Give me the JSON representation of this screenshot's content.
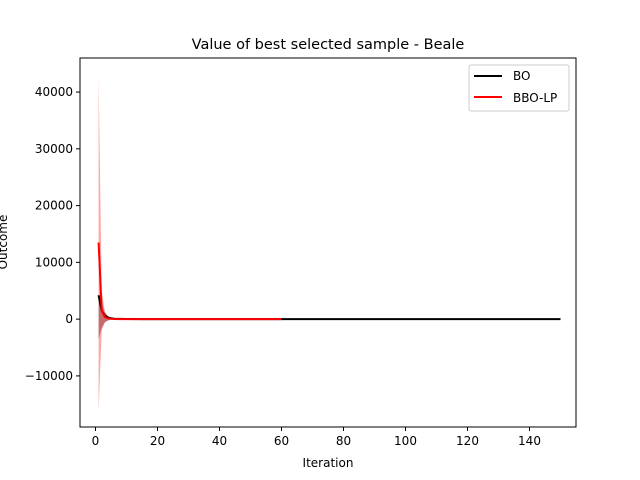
{
  "chart_data": {
    "type": "line",
    "title": "Value of best selected sample - Beale",
    "xlabel": "Iteration",
    "ylabel": "Outcome",
    "xlim": [
      -5,
      155
    ],
    "ylim": [
      -19000,
      46000
    ],
    "xticks": [
      0,
      20,
      40,
      60,
      80,
      100,
      120,
      140
    ],
    "yticks": [
      -10000,
      0,
      10000,
      20000,
      30000,
      40000
    ],
    "legend_position": "top-right",
    "grid": false,
    "series": [
      {
        "name": "BO",
        "color": "#000000",
        "band_color": "#000000",
        "band_opacity": 0.35,
        "x": [
          1,
          2,
          3,
          4,
          5,
          6,
          8,
          10,
          15,
          20,
          30,
          40,
          60,
          80,
          100,
          120,
          150
        ],
        "y": [
          4200,
          1500,
          600,
          300,
          150,
          80,
          40,
          20,
          10,
          5,
          3,
          2,
          1,
          1,
          1,
          1,
          1
        ],
        "band_x": [
          1,
          2,
          3,
          4,
          5,
          6,
          8,
          10,
          15,
          20,
          30,
          40,
          60,
          80,
          100,
          120,
          150
        ],
        "band_lower": [
          -3500,
          -1500,
          -600,
          -250,
          -120,
          -60,
          -20,
          -10,
          -5,
          -3,
          -2,
          -1,
          0,
          0,
          0,
          0,
          0
        ],
        "band_upper": [
          4500,
          2800,
          1200,
          500,
          250,
          120,
          60,
          30,
          15,
          8,
          5,
          3,
          2,
          2,
          2,
          2,
          2
        ]
      },
      {
        "name": "BBO-LP",
        "color": "#ff0000",
        "band_color": "#ff0000",
        "band_opacity": 0.35,
        "x": [
          1,
          2,
          3,
          4,
          5,
          6,
          8,
          10,
          15,
          20,
          30,
          40,
          50,
          60
        ],
        "y": [
          13500,
          1500,
          400,
          150,
          60,
          30,
          15,
          8,
          4,
          2,
          1,
          1,
          1,
          1
        ],
        "band_x": [
          1,
          2,
          3,
          4,
          5,
          6,
          8,
          10,
          15,
          20,
          30,
          40,
          50,
          60
        ],
        "band_lower": [
          -16200,
          -2000,
          -500,
          -200,
          -80,
          -40,
          -15,
          -8,
          -4,
          -2,
          -1,
          -1,
          0,
          0
        ],
        "band_upper": [
          42800,
          5000,
          1300,
          500,
          200,
          100,
          45,
          25,
          12,
          6,
          3,
          2,
          2,
          2
        ]
      }
    ]
  }
}
